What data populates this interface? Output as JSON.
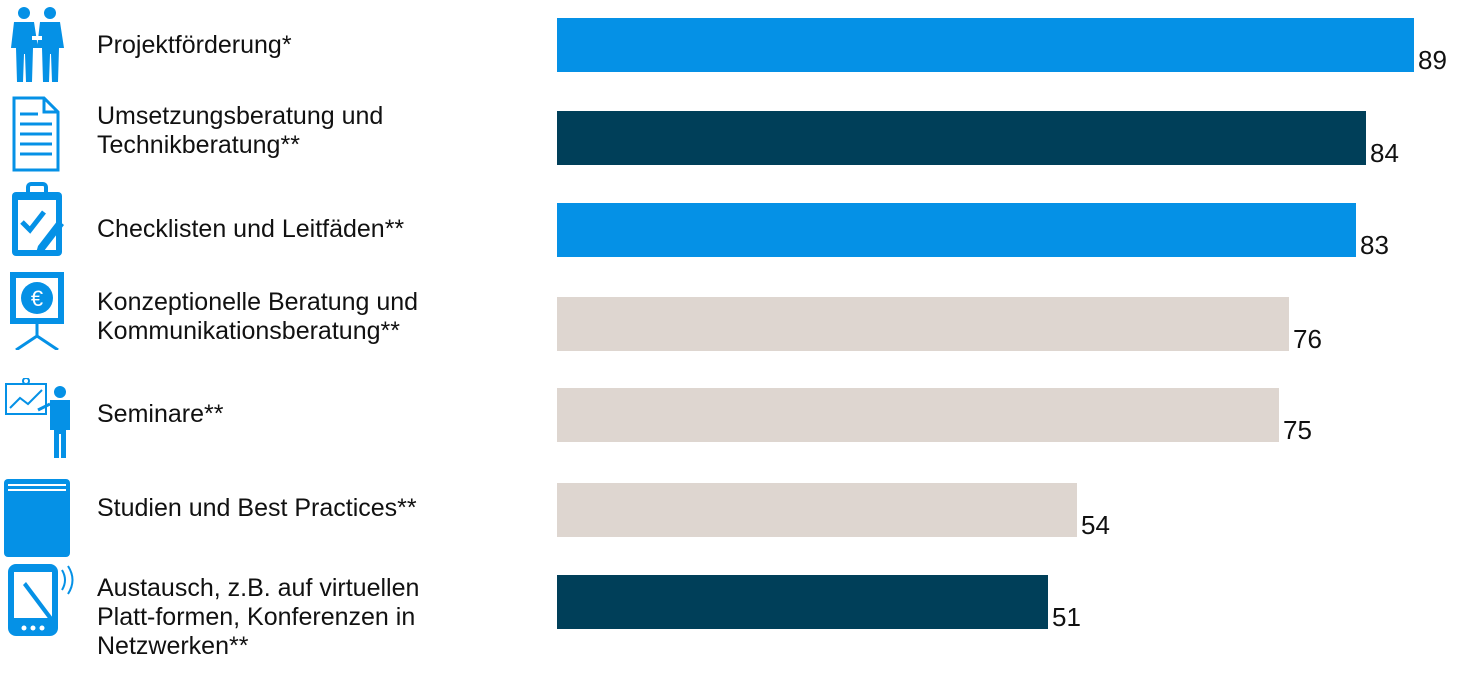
{
  "chart_data": {
    "type": "bar",
    "orientation": "horizontal",
    "categories": [
      "Projektförderung*",
      "Umsetzungsberatung und Technikberatung**",
      "Checklisten und Leitfäden**",
      "Konzeptionelle Beratung und Kommunikationsberatung**",
      "Seminare**",
      "Studien und Best Practices**",
      "Austausch, z.B. auf virtuellen Platt-formen, Konferenzen in Netzwerken**"
    ],
    "category_lines": [
      [
        "Projektförderung*"
      ],
      [
        "Umsetzungsberatung und",
        "Technikberatung**"
      ],
      [
        "Checklisten und Leitfäden**"
      ],
      [
        "Konzeptionelle Beratung und",
        "Kommunikationsberatung**"
      ],
      [
        "Seminare**"
      ],
      [
        "Studien und Best Practices**"
      ],
      [
        "Austausch, z.B. auf virtuellen",
        "Platt-formen, Konferenzen in",
        "Netzwerken**"
      ]
    ],
    "values": [
      89,
      84,
      83,
      76,
      75,
      54,
      51
    ],
    "value_labels": [
      "89",
      "84",
      "83",
      "76",
      "75",
      "54",
      "51"
    ],
    "bar_colors": [
      "#0591e6",
      "#003f59",
      "#0591e6",
      "#ded6d0",
      "#ded6d0",
      "#ded6d0",
      "#003f59"
    ],
    "icons": [
      "business-people-icon",
      "document-icon",
      "clipboard-checklist-icon",
      "presentation-board-euro-icon",
      "presenter-chart-icon",
      "book-icon",
      "tablet-pen-icon"
    ],
    "xlim": [
      0,
      100
    ],
    "title": "",
    "xlabel": "",
    "ylabel": "",
    "grid": false,
    "legend": "none"
  },
  "colors": {
    "accent_blue": "#0591e6",
    "dark_teal": "#003f59",
    "light_beige": "#ded6d0",
    "icon_blue": "#0591e6"
  }
}
